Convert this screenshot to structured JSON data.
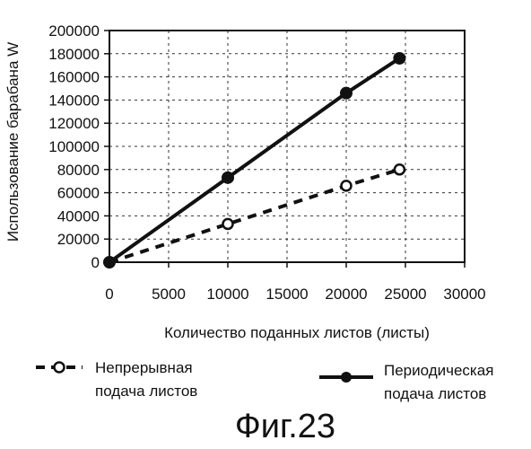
{
  "chart_data": {
    "type": "line",
    "xlabel": "Количество поданных листов (листы)",
    "ylabel": "Использование барабана  W",
    "xlim": [
      0,
      30000
    ],
    "ylim": [
      0,
      200000
    ],
    "x_ticks": [
      0,
      5000,
      10000,
      15000,
      20000,
      25000,
      30000
    ],
    "y_ticks": [
      0,
      20000,
      40000,
      60000,
      80000,
      100000,
      120000,
      140000,
      160000,
      180000,
      200000
    ],
    "grid": "dashed",
    "legend_position": "bottom",
    "series": [
      {
        "name": "Непрерывная подача листов",
        "legend_lines": [
          "Непрерывная",
          "подача листов"
        ],
        "style": "dashed",
        "marker": "open-circle",
        "color": "#111111",
        "x": [
          0,
          10000,
          20000,
          24500
        ],
        "y": [
          0,
          33000,
          66000,
          80000
        ]
      },
      {
        "name": "Периодическая подача листов",
        "legend_lines": [
          "Периодическая",
          "подача листов"
        ],
        "style": "solid",
        "marker": "filled-circle",
        "color": "#111111",
        "x": [
          0,
          10000,
          20000,
          24500
        ],
        "y": [
          0,
          73000,
          146000,
          176000
        ]
      }
    ]
  },
  "caption": "Фиг.23"
}
